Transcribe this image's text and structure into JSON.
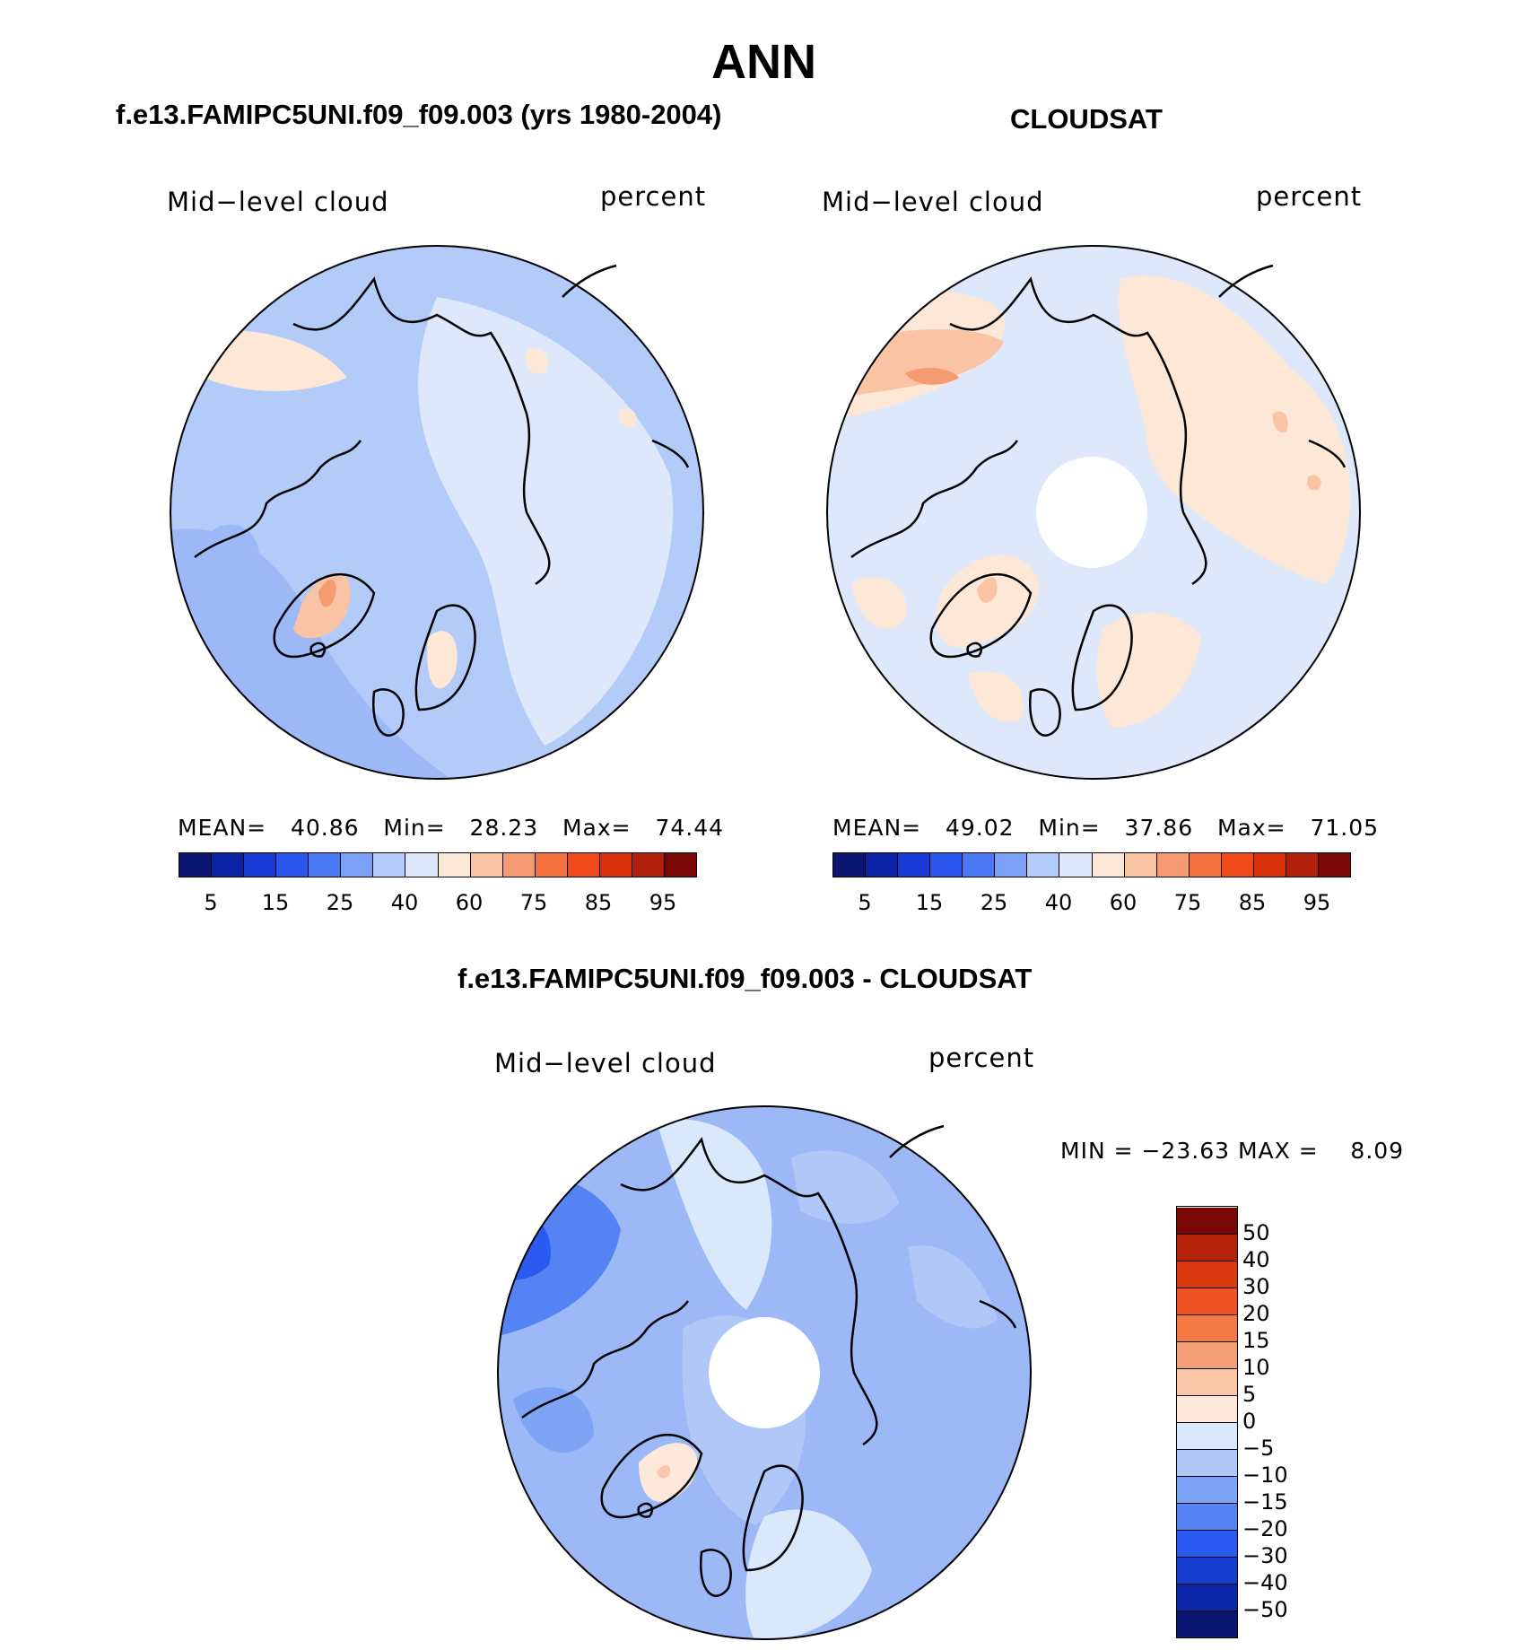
{
  "page_title": "ANN",
  "panels": {
    "model": {
      "heading": "f.e13.FAMIPC5UNI.f09_f09.003 (yrs 1980-2004)",
      "variable": "Mid−level cloud",
      "units": "percent",
      "stats": {
        "mean_label": "MEAN=",
        "mean": "40.86",
        "min_label": "Min=",
        "min": "28.23",
        "max_label": "Max=",
        "max": "74.44"
      }
    },
    "obs": {
      "heading": "CLOUDSAT",
      "variable": "Mid−level cloud",
      "units": "percent",
      "stats": {
        "mean_label": "MEAN=",
        "mean": "49.02",
        "min_label": "Min=",
        "min": "37.86",
        "max_label": "Max=",
        "max": "71.05"
      }
    },
    "diff": {
      "heading": "f.e13.FAMIPC5UNI.f09_f09.003 - CLOUDSAT",
      "variable": "Mid−level cloud",
      "units": "percent",
      "minmax": "MIN = −23.63 MAX =    8.09"
    }
  },
  "colorbar_abs": {
    "colors": [
      "#0a1670",
      "#0b22a6",
      "#1a3ad6",
      "#2b56ee",
      "#4a78f5",
      "#7aa0f7",
      "#b3cbf8",
      "#dde9fb",
      "#fde7d6",
      "#f9c3a4",
      "#f69a72",
      "#f4703e",
      "#f04a1a",
      "#d9300c",
      "#b0200a",
      "#7a0606"
    ],
    "tick_labels": [
      "5",
      "15",
      "25",
      "40",
      "60",
      "75",
      "85",
      "95"
    ]
  },
  "colorbar_diff": {
    "colors": [
      "#0a1670",
      "#0d27a8",
      "#163fd2",
      "#2b5af0",
      "#5583f3",
      "#7fa3f5",
      "#b0c8f8",
      "#d9e8fb",
      "#fde8dc",
      "#fac7aa",
      "#f59f78",
      "#f37a45",
      "#f05424",
      "#d9390f",
      "#b6230a",
      "#7a0606"
    ],
    "tick_labels": [
      "−50",
      "−40",
      "−30",
      "−20",
      "−15",
      "−10",
      "−5",
      "0",
      "5",
      "10",
      "15",
      "20",
      "30",
      "40",
      "50"
    ]
  }
}
